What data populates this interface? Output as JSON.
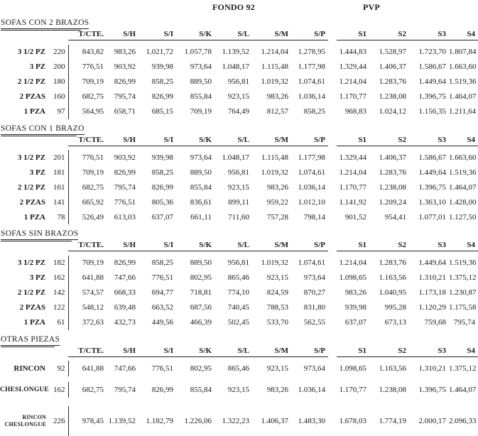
{
  "header": {
    "fondo_label": "FONDO 92",
    "pvp_label": "PVP"
  },
  "columns": [
    "T/CTE.",
    "S/H",
    "S/I",
    "S/K",
    "S/L",
    "S/M",
    "S/P",
    "S1",
    "S2",
    "S3",
    "S4"
  ],
  "sections": [
    {
      "title": "SOFAS CON 2 BRAZOS",
      "rows": [
        {
          "label": "3 1/2 PZ",
          "qty": "220",
          "values": [
            "843,82",
            "983,26",
            "1.021,72",
            "1.057,78",
            "1.139,52",
            "1.214,04",
            "1.278,95",
            "1.444,83",
            "1.528,97",
            "1.723,70",
            "1.807,84"
          ]
        },
        {
          "label": "3 PZ",
          "qty": "200",
          "values": [
            "776,51",
            "903,92",
            "939,98",
            "973,64",
            "1.048,17",
            "1.115,48",
            "1.177,98",
            "1.329,44",
            "1.406,37",
            "1.586,67",
            "1.663,60"
          ]
        },
        {
          "label": "2 1/2 PZ",
          "qty": "180",
          "values": [
            "709,19",
            "826,99",
            "858,25",
            "889,50",
            "956,81",
            "1.019,32",
            "1.074,61",
            "1.214,04",
            "1.283,76",
            "1.449,64",
            "1.519,36"
          ]
        },
        {
          "label": "2 PZAS",
          "qty": "160",
          "values": [
            "682,75",
            "795,74",
            "826,99",
            "855,84",
            "923,15",
            "983,26",
            "1.036,14",
            "1.170,77",
            "1.238,08",
            "1.396,75",
            "1.464,07"
          ]
        },
        {
          "label": "1 PZA",
          "qty": "97",
          "values": [
            "564,95",
            "658,71",
            "685,15",
            "709,19",
            "764,49",
            "812,57",
            "858,25",
            "968,83",
            "1.024,12",
            "1.156,35",
            "1.211,64"
          ]
        }
      ]
    },
    {
      "title": "SOFAS CON 1 BRAZO",
      "rows": [
        {
          "label": "3 1/2 PZ",
          "qty": "201",
          "values": [
            "776,51",
            "903,92",
            "939,98",
            "973,64",
            "1.048,17",
            "1.115,48",
            "1.177,98",
            "1.329,44",
            "1.406,37",
            "1.586,67",
            "1.663,60"
          ]
        },
        {
          "label": "3 PZ",
          "qty": "181",
          "values": [
            "709,19",
            "826,99",
            "858,25",
            "889,50",
            "956,81",
            "1.019,32",
            "1.074,61",
            "1.214,04",
            "1.283,76",
            "1.449,64",
            "1.519,36"
          ]
        },
        {
          "label": "2 1/2 PZ",
          "qty": "161",
          "values": [
            "682,75",
            "795,74",
            "826,99",
            "855,84",
            "923,15",
            "983,26",
            "1.036,14",
            "1.170,77",
            "1.238,08",
            "1.396,75",
            "1.464,07"
          ]
        },
        {
          "label": "2 PZAS",
          "qty": "141",
          "values": [
            "665,92",
            "776,51",
            "805,36",
            "836,61",
            "899,11",
            "959,22",
            "1.012,10",
            "1.141,92",
            "1.209,24",
            "1.363,10",
            "1.428,00"
          ]
        },
        {
          "label": "1 PZA",
          "qty": "78",
          "values": [
            "526,49",
            "613,03",
            "637,07",
            "661,11",
            "711,60",
            "757,28",
            "798,14",
            "901,52",
            "954,41",
            "1.077,01",
            "1.127,50"
          ]
        }
      ]
    },
    {
      "title": "SOFAS SIN BRAZOS",
      "rows": [
        {
          "label": "3 1/2 PZ",
          "qty": "182",
          "values": [
            "709,19",
            "826,99",
            "858,25",
            "889,50",
            "956,81",
            "1.019,32",
            "1.074,61",
            "1.214,04",
            "1.283,76",
            "1.449,64",
            "1.519,36"
          ]
        },
        {
          "label": "3 PZ",
          "qty": "162",
          "values": [
            "641,88",
            "747,66",
            "776,51",
            "802,95",
            "865,46",
            "923,15",
            "973,64",
            "1.098,65",
            "1.163,56",
            "1.310,21",
            "1.375,12"
          ]
        },
        {
          "label": "2 1/2 PZ",
          "qty": "142",
          "values": [
            "574,57",
            "668,33",
            "694,77",
            "718,81",
            "774,10",
            "824,59",
            "870,27",
            "983,26",
            "1.040,95",
            "1.173,18",
            "1.230,87"
          ]
        },
        {
          "label": "2 PZAS",
          "qty": "122",
          "values": [
            "548,12",
            "639,48",
            "663,52",
            "687,56",
            "740,45",
            "788,53",
            "831,80",
            "939,98",
            "995,28",
            "1.120,29",
            "1.175,58"
          ]
        },
        {
          "label": "1 PZA",
          "qty": "61",
          "values": [
            "372,63",
            "432,73",
            "449,56",
            "466,39",
            "502,45",
            "533,70",
            "562,55",
            "637,07",
            "673,13",
            "759,68",
            "795,74"
          ]
        }
      ]
    },
    {
      "title": "OTRAS PIEZAS",
      "rows": [
        {
          "label": "RINCON",
          "qty": "92",
          "values": [
            "641,88",
            "747,66",
            "776,51",
            "802,95",
            "865,46",
            "923,15",
            "973,64",
            "1.098,65",
            "1.163,56",
            "1.310,21",
            "1.375,12"
          ]
        },
        {
          "label": "CHESLONGUE",
          "qty": "162",
          "values": [
            "682,75",
            "795,74",
            "826,99",
            "855,84",
            "923,15",
            "983,26",
            "1.036,14",
            "1.170,77",
            "1.238,08",
            "1.396,75",
            "1.464,07"
          ]
        },
        {
          "label": "RINCON CHESLONGUE",
          "qty": "226",
          "values": [
            "978,45",
            "1.139,52",
            "1.182,79",
            "1.226,06",
            "1.322,23",
            "1.406,37",
            "1.483,30",
            "1.678,03",
            "1.774,19",
            "2.000,17",
            "2.096,33"
          ]
        }
      ]
    }
  ]
}
